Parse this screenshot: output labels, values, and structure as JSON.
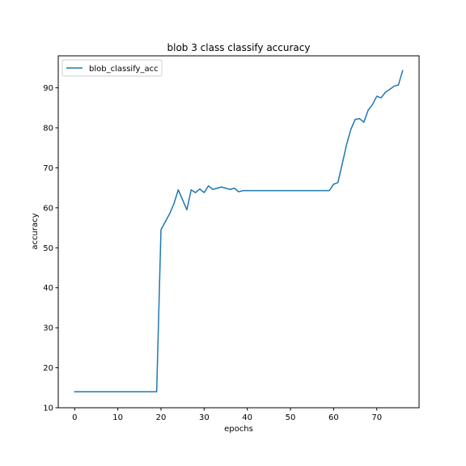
{
  "chart_data": {
    "type": "line",
    "title": "blob 3 class classify accuracy",
    "xlabel": "epochs",
    "ylabel": "accuracy",
    "xlim": [
      -3.8,
      79.8
    ],
    "ylim": [
      10,
      98
    ],
    "xticks": [
      0,
      10,
      20,
      30,
      40,
      50,
      60,
      70
    ],
    "yticks": [
      10,
      20,
      30,
      40,
      50,
      60,
      70,
      80,
      90
    ],
    "grid": false,
    "legend_position": "upper left",
    "series": [
      {
        "name": "blob_classify_acc",
        "color": "#1f77b4",
        "x": [
          0,
          1,
          2,
          3,
          4,
          5,
          6,
          7,
          8,
          9,
          10,
          11,
          12,
          13,
          14,
          15,
          16,
          17,
          18,
          19,
          20,
          21,
          22,
          23,
          24,
          25,
          26,
          27,
          28,
          29,
          30,
          31,
          32,
          33,
          34,
          35,
          36,
          37,
          38,
          39,
          40,
          41,
          42,
          43,
          44,
          45,
          46,
          47,
          48,
          49,
          50,
          51,
          52,
          53,
          54,
          55,
          56,
          57,
          58,
          59,
          60,
          61,
          62,
          63,
          64,
          65,
          66,
          67,
          68,
          69,
          70,
          71,
          72,
          73,
          74,
          75,
          76
        ],
        "values": [
          14,
          14,
          14,
          14,
          14,
          14,
          14,
          14,
          14,
          14,
          14,
          14,
          14,
          14,
          14,
          14,
          14,
          14,
          14,
          14,
          54.5,
          56.5,
          58.5,
          61,
          64.5,
          62,
          59.5,
          64.5,
          63.8,
          64.7,
          63.8,
          65.5,
          64.6,
          64.9,
          65.2,
          64.9,
          64.6,
          64.9,
          64,
          64.3,
          64.3,
          64.3,
          64.3,
          64.3,
          64.3,
          64.3,
          64.3,
          64.3,
          64.3,
          64.3,
          64.3,
          64.3,
          64.3,
          64.3,
          64.3,
          64.3,
          64.3,
          64.3,
          64.3,
          64.3,
          65.9,
          66.3,
          71,
          75.8,
          79.6,
          82.1,
          82.3,
          81.4,
          84.4,
          85.8,
          87.9,
          87.5,
          88.9,
          89.6,
          90.4,
          90.7,
          94.3
        ]
      }
    ]
  }
}
